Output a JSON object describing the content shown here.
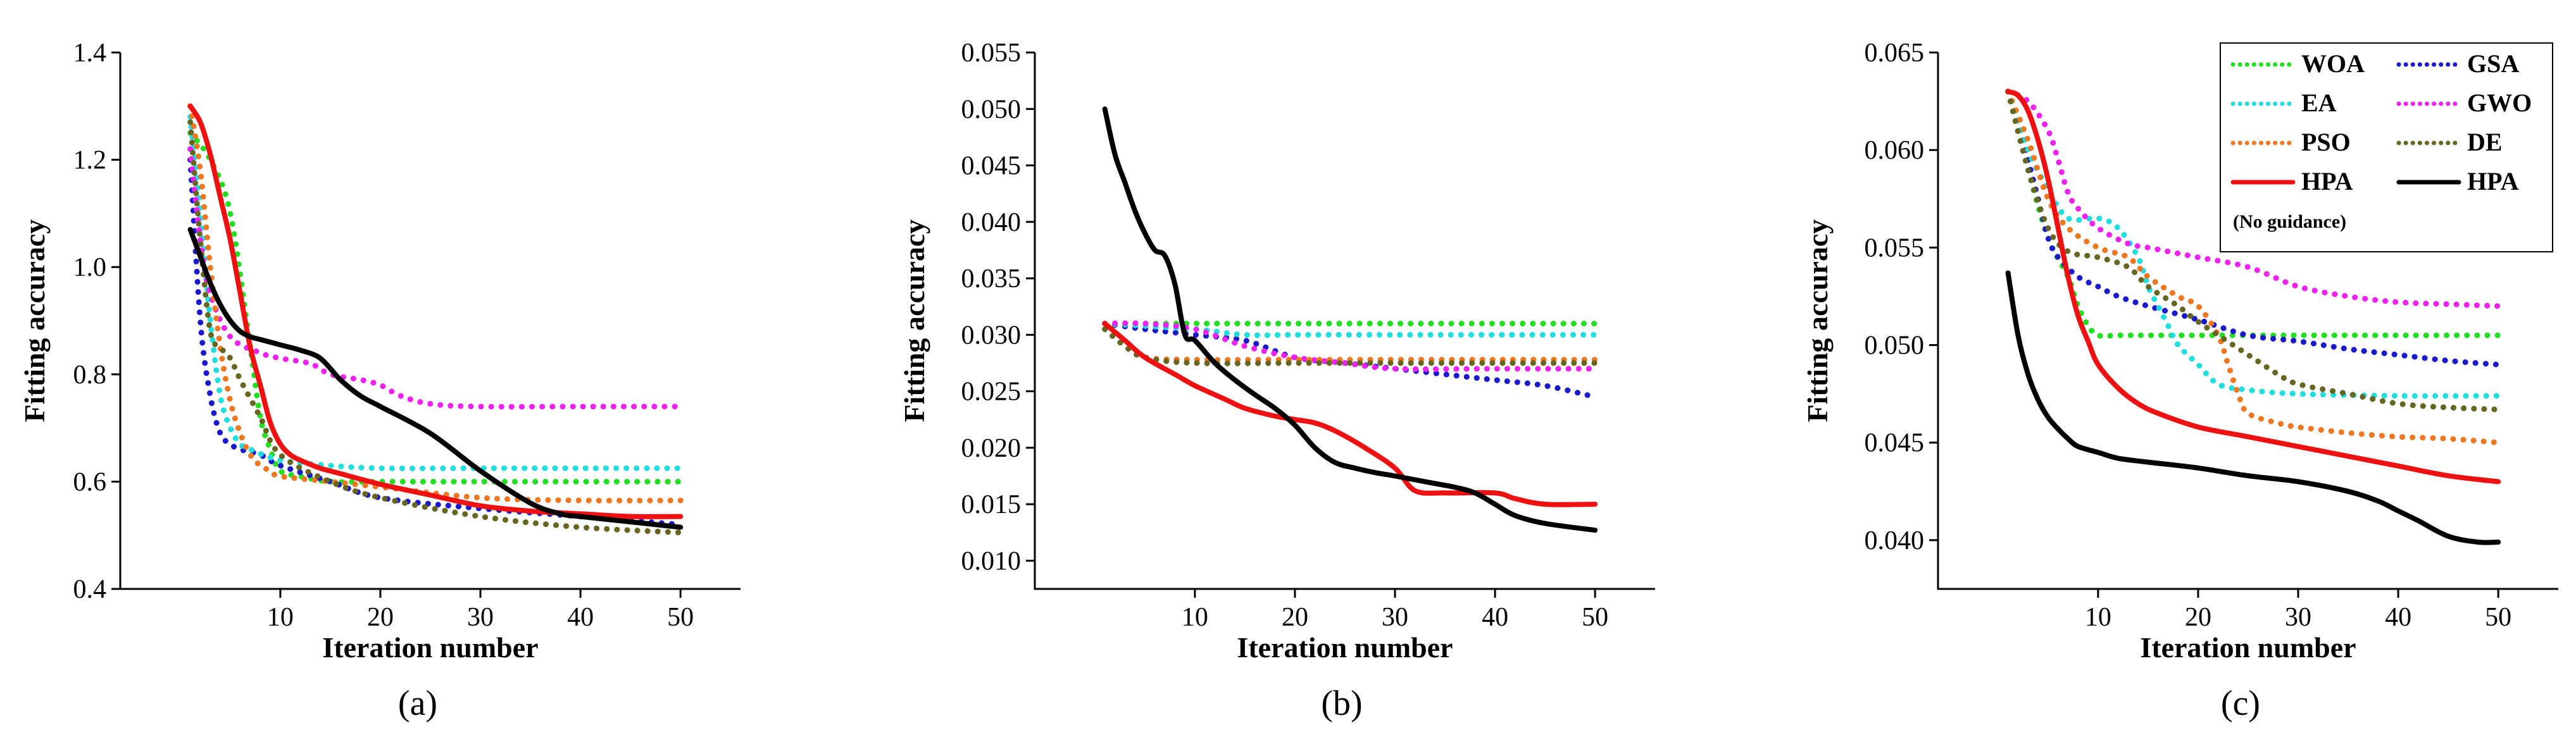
{
  "chart_data": [
    {
      "type": "line",
      "caption": "(a)",
      "xlabel": "Iteration number",
      "ylabel": "Fitting accuracy",
      "xlim": [
        -6,
        56
      ],
      "ylim": [
        0.4,
        1.4
      ],
      "xticks": [
        10,
        20,
        30,
        40,
        50
      ],
      "yticks": [
        0.4,
        0.6,
        0.8,
        1.0,
        1.2,
        1.4
      ],
      "ytick_labels": [
        "0.4",
        "0.6",
        "0.8",
        "1.0",
        "1.2",
        "1.4"
      ],
      "series": [
        {
          "name": "WOA",
          "style": "dotted",
          "color": "#22dd22",
          "x": [
            1,
            3,
            5,
            7,
            8,
            9,
            10,
            12,
            15,
            20,
            30,
            40,
            50
          ],
          "y": [
            1.25,
            1.2,
            1.1,
            0.85,
            0.72,
            0.66,
            0.62,
            0.61,
            0.6,
            0.6,
            0.6,
            0.6,
            0.6
          ]
        },
        {
          "name": "GSA",
          "style": "dotted",
          "color": "#1a1acc",
          "x": [
            1,
            2,
            3,
            4,
            5,
            6,
            8,
            10,
            15,
            20,
            30,
            40,
            50
          ],
          "y": [
            1.2,
            0.9,
            0.76,
            0.69,
            0.67,
            0.66,
            0.65,
            0.63,
            0.6,
            0.57,
            0.55,
            0.535,
            0.52
          ]
        },
        {
          "name": "EA",
          "style": "dotted",
          "color": "#22dddd",
          "x": [
            1,
            2,
            3,
            4,
            5,
            6,
            7,
            10,
            15,
            20,
            30,
            40,
            50
          ],
          "y": [
            1.28,
            1.1,
            0.9,
            0.76,
            0.7,
            0.67,
            0.66,
            0.64,
            0.63,
            0.625,
            0.625,
            0.625,
            0.625
          ]
        },
        {
          "name": "GWO",
          "style": "dotted",
          "color": "#ee22ee",
          "x": [
            1,
            2,
            3,
            5,
            8,
            10,
            13,
            15,
            18,
            20,
            22,
            25,
            30,
            40,
            50
          ],
          "y": [
            1.22,
            1.05,
            0.95,
            0.87,
            0.84,
            0.83,
            0.82,
            0.8,
            0.79,
            0.78,
            0.76,
            0.745,
            0.74,
            0.74,
            0.74
          ]
        },
        {
          "name": "PSO",
          "style": "dotted",
          "color": "#ee7722",
          "x": [
            1,
            2,
            3,
            4,
            5,
            6,
            7,
            8,
            9,
            10,
            15,
            20,
            30,
            40,
            50
          ],
          "y": [
            1.3,
            1.18,
            1.0,
            0.85,
            0.75,
            0.69,
            0.65,
            0.63,
            0.62,
            0.61,
            0.6,
            0.59,
            0.57,
            0.565,
            0.565
          ]
        },
        {
          "name": "DE",
          "style": "dotted",
          "color": "#666622",
          "x": [
            1,
            2,
            3,
            4,
            5,
            6,
            8,
            10,
            15,
            20,
            30,
            40,
            50
          ],
          "y": [
            1.27,
            1.05,
            0.88,
            0.85,
            0.83,
            0.79,
            0.72,
            0.65,
            0.6,
            0.57,
            0.535,
            0.515,
            0.505
          ]
        },
        {
          "name": "HPA",
          "style": "solid",
          "color": "#ee1111",
          "x": [
            1,
            2,
            3,
            4,
            5,
            6,
            7,
            8,
            9,
            10,
            11,
            12,
            14,
            16,
            20,
            25,
            30,
            35,
            40,
            45,
            50
          ],
          "y": [
            1.3,
            1.27,
            1.21,
            1.13,
            1.05,
            0.95,
            0.85,
            0.78,
            0.71,
            0.67,
            0.65,
            0.64,
            0.625,
            0.615,
            0.595,
            0.575,
            0.555,
            0.545,
            0.54,
            0.535,
            0.535
          ]
        },
        {
          "name": "HPA (No guidance)",
          "style": "solid",
          "color": "#000000",
          "x": [
            1,
            2,
            3,
            4,
            5,
            6,
            7,
            8,
            10,
            12,
            14,
            16,
            18,
            20,
            25,
            30,
            35,
            38,
            40,
            45,
            50
          ],
          "y": [
            1.07,
            1.02,
            0.97,
            0.93,
            0.9,
            0.88,
            0.87,
            0.865,
            0.855,
            0.845,
            0.83,
            0.79,
            0.76,
            0.74,
            0.69,
            0.62,
            0.56,
            0.54,
            0.535,
            0.525,
            0.515
          ]
        }
      ]
    },
    {
      "type": "line",
      "caption": "(b)",
      "xlabel": "Iteration number",
      "ylabel": "Fitting accuracy",
      "xlim": [
        -6,
        56
      ],
      "ylim": [
        0.0075,
        0.055
      ],
      "xticks": [
        10,
        20,
        30,
        40,
        50
      ],
      "yticks": [
        0.01,
        0.015,
        0.02,
        0.025,
        0.03,
        0.035,
        0.04,
        0.045,
        0.05,
        0.055
      ],
      "ytick_labels": [
        "0.010",
        "0.015",
        "0.020",
        "0.025",
        "0.030",
        "0.035",
        "0.040",
        "0.045",
        "0.050",
        "0.055"
      ],
      "series": [
        {
          "name": "WOA",
          "style": "dotted",
          "color": "#22dd22",
          "x": [
            1,
            10,
            20,
            30,
            40,
            50
          ],
          "y": [
            0.031,
            0.031,
            0.031,
            0.031,
            0.031,
            0.031
          ]
        },
        {
          "name": "GSA",
          "style": "dotted",
          "color": "#1a1acc",
          "x": [
            1,
            5,
            10,
            15,
            20,
            25,
            30,
            35,
            40,
            45,
            50
          ],
          "y": [
            0.031,
            0.0305,
            0.03,
            0.0295,
            0.028,
            0.0275,
            0.027,
            0.0265,
            0.026,
            0.0255,
            0.0245
          ]
        },
        {
          "name": "EA",
          "style": "dotted",
          "color": "#22dddd",
          "x": [
            1,
            10,
            15,
            20,
            30,
            40,
            50
          ],
          "y": [
            0.031,
            0.0305,
            0.03,
            0.03,
            0.03,
            0.03,
            0.03
          ]
        },
        {
          "name": "GWO",
          "style": "dotted",
          "color": "#ee22ee",
          "x": [
            1,
            5,
            10,
            15,
            20,
            25,
            30,
            40,
            50
          ],
          "y": [
            0.031,
            0.031,
            0.0305,
            0.029,
            0.028,
            0.0275,
            0.027,
            0.027,
            0.027
          ]
        },
        {
          "name": "PSO",
          "style": "dotted",
          "color": "#ee7722",
          "x": [
            1,
            3,
            5,
            10,
            20,
            30,
            40,
            50
          ],
          "y": [
            0.0305,
            0.029,
            0.028,
            0.0278,
            0.0278,
            0.0278,
            0.0278,
            0.0278
          ]
        },
        {
          "name": "DE",
          "style": "dotted",
          "color": "#666622",
          "x": [
            1,
            3,
            5,
            10,
            20,
            30,
            40,
            50
          ],
          "y": [
            0.0305,
            0.029,
            0.028,
            0.0275,
            0.0275,
            0.0275,
            0.0275,
            0.0275
          ]
        },
        {
          "name": "HPA",
          "style": "solid",
          "color": "#ee1111",
          "x": [
            1,
            3,
            5,
            8,
            10,
            13,
            15,
            18,
            20,
            22,
            24,
            27,
            30,
            32,
            35,
            40,
            42,
            45,
            50
          ],
          "y": [
            0.031,
            0.0295,
            0.028,
            0.0265,
            0.0255,
            0.0243,
            0.0235,
            0.0228,
            0.0225,
            0.0222,
            0.0215,
            0.02,
            0.0182,
            0.0162,
            0.016,
            0.016,
            0.0155,
            0.015,
            0.015
          ]
        },
        {
          "name": "HPA (No guidance)",
          "style": "solid",
          "color": "#000000",
          "x": [
            1,
            2,
            3,
            4,
            5,
            6,
            7,
            8,
            9,
            10,
            12,
            14,
            16,
            18,
            20,
            22,
            24,
            26,
            28,
            30,
            33,
            36,
            38,
            40,
            42,
            45,
            50
          ],
          "y": [
            0.05,
            0.046,
            0.0435,
            0.041,
            0.039,
            0.0375,
            0.037,
            0.0345,
            0.03,
            0.0295,
            0.0275,
            0.026,
            0.0247,
            0.0235,
            0.022,
            0.02,
            0.0187,
            0.0182,
            0.0178,
            0.0175,
            0.017,
            0.0165,
            0.016,
            0.015,
            0.014,
            0.0133,
            0.0127
          ]
        }
      ]
    },
    {
      "type": "line",
      "caption": "(c)",
      "xlabel": "Iteration number",
      "ylabel": "Fitting accuracy",
      "xlim": [
        -6,
        56
      ],
      "ylim": [
        0.0375,
        0.065
      ],
      "xticks": [
        10,
        20,
        30,
        40,
        50
      ],
      "yticks": [
        0.04,
        0.045,
        0.05,
        0.055,
        0.06,
        0.065
      ],
      "ytick_labels": [
        "0.040",
        "0.045",
        "0.050",
        "0.055",
        "0.060",
        "0.065"
      ],
      "legend": {
        "position": "top-right",
        "items": [
          "WOA",
          "GSA",
          "EA",
          "GWO",
          "PSO",
          "DE",
          "HPA",
          "HPA"
        ],
        "note": "(No guidance)"
      },
      "series": [
        {
          "name": "WOA",
          "style": "dotted",
          "color": "#22dd22",
          "x": [
            1,
            3,
            5,
            7,
            8,
            9,
            10,
            12,
            15,
            20,
            30,
            40,
            50
          ],
          "y": [
            0.063,
            0.059,
            0.0555,
            0.0535,
            0.052,
            0.051,
            0.0505,
            0.0505,
            0.0505,
            0.0505,
            0.0505,
            0.0505,
            0.0505
          ]
        },
        {
          "name": "GSA",
          "style": "dotted",
          "color": "#1a1acc",
          "x": [
            1,
            2,
            3,
            4,
            5,
            6,
            8,
            10,
            12,
            15,
            20,
            25,
            30,
            35,
            40,
            45,
            50
          ],
          "y": [
            0.063,
            0.0615,
            0.0595,
            0.0575,
            0.0555,
            0.0545,
            0.0535,
            0.053,
            0.0525,
            0.052,
            0.0513,
            0.0505,
            0.0502,
            0.0498,
            0.0495,
            0.0492,
            0.049
          ]
        },
        {
          "name": "EA",
          "style": "dotted",
          "color": "#22dddd",
          "x": [
            1,
            3,
            5,
            7,
            10,
            12,
            14,
            15,
            16,
            17,
            18,
            20,
            22,
            25,
            30,
            40,
            50
          ],
          "y": [
            0.063,
            0.06,
            0.058,
            0.0565,
            0.0565,
            0.056,
            0.0545,
            0.053,
            0.052,
            0.051,
            0.05,
            0.049,
            0.048,
            0.0477,
            0.0475,
            0.0474,
            0.0474
          ]
        },
        {
          "name": "GWO",
          "style": "dotted",
          "color": "#ee22ee",
          "x": [
            1,
            3,
            5,
            6,
            7,
            8,
            10,
            13,
            15,
            20,
            25,
            30,
            35,
            40,
            45,
            50
          ],
          "y": [
            0.063,
            0.0625,
            0.061,
            0.0595,
            0.0578,
            0.057,
            0.056,
            0.0552,
            0.055,
            0.0545,
            0.054,
            0.053,
            0.0525,
            0.0522,
            0.0521,
            0.052
          ]
        },
        {
          "name": "PSO",
          "style": "dotted",
          "color": "#ee7722",
          "x": [
            1,
            3,
            5,
            7,
            10,
            13,
            15,
            18,
            20,
            22,
            23,
            24,
            25,
            28,
            30,
            35,
            40,
            45,
            50
          ],
          "y": [
            0.063,
            0.0605,
            0.0575,
            0.056,
            0.055,
            0.0545,
            0.0535,
            0.0525,
            0.052,
            0.0505,
            0.049,
            0.0475,
            0.0465,
            0.046,
            0.0458,
            0.0455,
            0.0453,
            0.0452,
            0.045
          ]
        },
        {
          "name": "DE",
          "style": "dotted",
          "color": "#666622",
          "x": [
            1,
            3,
            5,
            7,
            10,
            13,
            15,
            18,
            20,
            25,
            28,
            30,
            35,
            40,
            45,
            50
          ],
          "y": [
            0.063,
            0.059,
            0.056,
            0.0548,
            0.0545,
            0.054,
            0.053,
            0.052,
            0.0512,
            0.0495,
            0.0485,
            0.048,
            0.0475,
            0.047,
            0.0468,
            0.0467
          ]
        },
        {
          "name": "HPA",
          "style": "solid",
          "color": "#ee1111",
          "x": [
            1,
            2,
            3,
            4,
            5,
            6,
            7,
            8,
            9,
            10,
            12,
            14,
            16,
            20,
            25,
            30,
            35,
            40,
            45,
            50
          ],
          "y": [
            0.063,
            0.0628,
            0.062,
            0.0605,
            0.0585,
            0.056,
            0.0535,
            0.0515,
            0.0502,
            0.049,
            0.0478,
            0.047,
            0.0465,
            0.0458,
            0.0453,
            0.0448,
            0.0443,
            0.0438,
            0.0433,
            0.043
          ]
        },
        {
          "name": "HPA (No guidance)",
          "style": "solid",
          "color": "#000000",
          "x": [
            1,
            2,
            3,
            4,
            5,
            6,
            7,
            8,
            10,
            12,
            15,
            20,
            25,
            30,
            35,
            38,
            40,
            42,
            45,
            48,
            50
          ],
          "y": [
            0.0537,
            0.0505,
            0.0485,
            0.0472,
            0.0463,
            0.0457,
            0.0452,
            0.0448,
            0.0445,
            0.0442,
            0.044,
            0.0437,
            0.0433,
            0.043,
            0.0425,
            0.042,
            0.0415,
            0.041,
            0.0402,
            0.0399,
            0.0399
          ]
        }
      ]
    }
  ]
}
